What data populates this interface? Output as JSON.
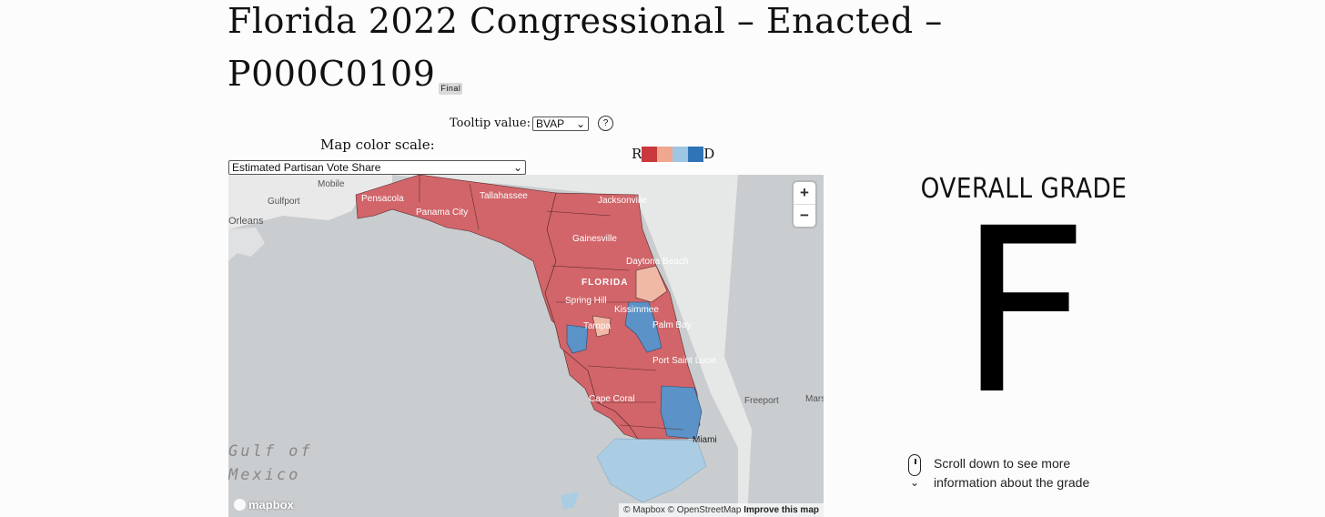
{
  "title": {
    "text": "Florida 2022 Congressional – Enacted – P000C0109",
    "badge": "Final"
  },
  "tooltip_control": {
    "label": "Tooltip value:",
    "selected": "BVAP",
    "help_label": "?"
  },
  "color_scale": {
    "label": "Map color scale:",
    "selected": "Estimated Partisan Vote Share"
  },
  "legend": {
    "left_label": "R",
    "right_label": "D",
    "colors": [
      "#c9383d",
      "#f0a78f",
      "#9ec6e3",
      "#2f74b6"
    ]
  },
  "map": {
    "region": "Florida",
    "place_labels": [
      {
        "name": "Mobile"
      },
      {
        "name": "Gulfport"
      },
      {
        "name": "Orleans"
      },
      {
        "name": "Pensacola"
      },
      {
        "name": "Panama City"
      },
      {
        "name": "Tallahassee"
      },
      {
        "name": "Jacksonville"
      },
      {
        "name": "Gainesville"
      },
      {
        "name": "Daytona Beach"
      },
      {
        "name": "FLORIDA"
      },
      {
        "name": "Spring Hill"
      },
      {
        "name": "Kissimmee"
      },
      {
        "name": "Tampa"
      },
      {
        "name": "Palm Bay"
      },
      {
        "name": "Port Saint Lucie"
      },
      {
        "name": "Cape Coral"
      },
      {
        "name": "Freeport"
      },
      {
        "name": "Miami"
      },
      {
        "name": "Mars"
      },
      {
        "name": "Gulf of"
      },
      {
        "name": "Mexico"
      }
    ],
    "zoom_in": "+",
    "zoom_out": "−",
    "attribution": {
      "mapbox": "© Mapbox",
      "osm": "© OpenStreetMap",
      "improve": "Improve this map"
    },
    "logo": "mapbox"
  },
  "grade": {
    "heading": "OVERALL GRADE",
    "letter": "F"
  },
  "scroll_hint": {
    "line1": "Scroll down to see more",
    "line2": "information about the grade",
    "icon": "mouse-scroll-icon"
  }
}
